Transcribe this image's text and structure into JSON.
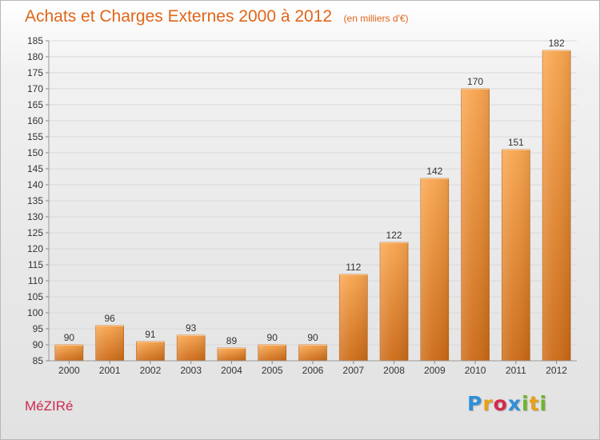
{
  "header": {
    "title": "Achats et Charges Externes 2000 à 2012",
    "unit": "(en milliers d'€)"
  },
  "footer": {
    "commune": "MéZIRé",
    "brand_letters": [
      {
        "char": "P",
        "color": "#2f8fd8"
      },
      {
        "char": "r",
        "color": "#e8a019"
      },
      {
        "char": "o",
        "color": "#d42a4e"
      },
      {
        "char": "x",
        "color": "#2f8fd8"
      },
      {
        "char": "i",
        "color": "#6cb52d"
      },
      {
        "char": "t",
        "color": "#e8a019"
      },
      {
        "char": "i",
        "color": "#6cb52d"
      }
    ]
  },
  "colors": {
    "bar_light": "#f8a54e",
    "bar_dark": "#cc6a16",
    "grid": "#d9d9d9",
    "text": "#333333"
  },
  "chart_data": {
    "type": "bar",
    "categories": [
      "2000",
      "2001",
      "2002",
      "2003",
      "2004",
      "2005",
      "2006",
      "2007",
      "2008",
      "2009",
      "2010",
      "2011",
      "2012"
    ],
    "values": [
      90,
      96,
      91,
      93,
      89,
      90,
      90,
      112,
      122,
      142,
      170,
      151,
      182
    ],
    "ylim": [
      85,
      185
    ],
    "yticks": [
      85,
      90,
      95,
      100,
      105,
      110,
      115,
      120,
      125,
      130,
      135,
      140,
      145,
      150,
      155,
      160,
      165,
      170,
      175,
      180,
      185
    ],
    "grid": true,
    "legend": "none"
  }
}
